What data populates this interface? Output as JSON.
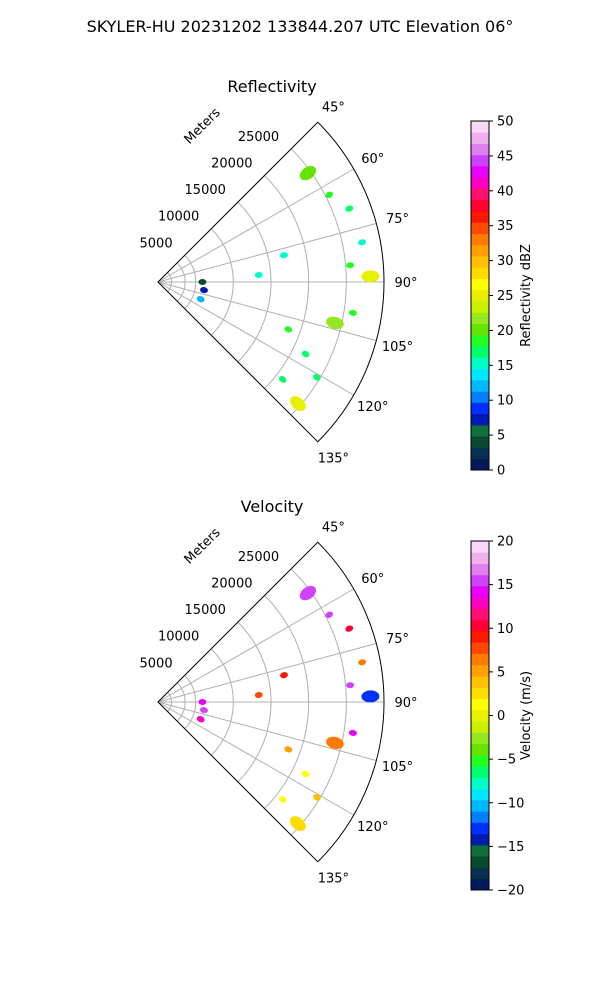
{
  "figure_title": "SKYLER-HU  20231202  133844.207 UTC Elevation 06°",
  "chart_data": [
    {
      "type": "polar-sector",
      "title": "Reflectivity",
      "range_label": "Meters",
      "range_ticks": [
        5000,
        10000,
        15000,
        20000,
        25000
      ],
      "range_max_m": 30000,
      "azimuth_range_deg": [
        45,
        135
      ],
      "azimuth_ticks": [
        "45°",
        "60°",
        "75°",
        "90°",
        "105°",
        "120°",
        "135°"
      ],
      "colorbar": {
        "label": "Reflectivity dBZ",
        "min": 0,
        "max": 50,
        "ticks": [
          "0",
          "5",
          "10",
          "15",
          "20",
          "25",
          "30",
          "35",
          "40",
          "45",
          "50"
        ],
        "colors": [
          "#021a5a",
          "#083050",
          "#0a4a30",
          "#0f6e3a",
          "#001bb0",
          "#0030ff",
          "#0080ff",
          "#00b8ff",
          "#00e8ff",
          "#00ffc8",
          "#00ff6a",
          "#20ff20",
          "#66e400",
          "#96e81e",
          "#c8f000",
          "#e8f000",
          "#ffff00",
          "#ffdc00",
          "#ffc000",
          "#ffa000",
          "#ff7a00",
          "#ff4a00",
          "#ff1800",
          "#ff0030",
          "#ff1070",
          "#ff00c0",
          "#e800ff",
          "#d040ff",
          "#e080f0",
          "#f0b0f0",
          "#f8d8f8"
        ]
      },
      "echo_cells": [
        {
          "r_km": 24.6,
          "az": 54,
          "dbz": 20
        },
        {
          "r_km": 25.5,
          "az": 63,
          "dbz": 19
        },
        {
          "r_km": 27.2,
          "az": 69,
          "dbz": 17
        },
        {
          "r_km": 27.6,
          "az": 79,
          "dbz": 15
        },
        {
          "r_km": 25.6,
          "az": 85,
          "dbz": 18
        },
        {
          "r_km": 28.2,
          "az": 88.5,
          "dbz": 25
        },
        {
          "r_km": 26.2,
          "az": 99,
          "dbz": 19
        },
        {
          "r_km": 24.1,
          "az": 103,
          "dbz": 22
        },
        {
          "r_km": 18.4,
          "az": 110,
          "dbz": 18
        },
        {
          "r_km": 21.8,
          "az": 116,
          "dbz": 17
        },
        {
          "r_km": 24.6,
          "az": 121,
          "dbz": 17
        },
        {
          "r_km": 24.6,
          "az": 131,
          "dbz": 25
        },
        {
          "r_km": 21.0,
          "az": 128,
          "dbz": 17
        },
        {
          "r_km": 5.9,
          "az": 90,
          "dbz": 4
        },
        {
          "r_km": 6.2,
          "az": 100,
          "dbz": 8
        },
        {
          "r_km": 6.1,
          "az": 112,
          "dbz": 12
        },
        {
          "r_km": 13.4,
          "az": 86,
          "dbz": 16
        },
        {
          "r_km": 17.1,
          "az": 78,
          "dbz": 15
        }
      ]
    },
    {
      "type": "polar-sector",
      "title": "Velocity",
      "range_label": "Meters",
      "range_ticks": [
        5000,
        10000,
        15000,
        20000,
        25000
      ],
      "range_max_m": 30000,
      "azimuth_range_deg": [
        45,
        135
      ],
      "azimuth_ticks": [
        "45°",
        "60°",
        "75°",
        "90°",
        "105°",
        "120°",
        "135°"
      ],
      "colorbar": {
        "label": "Velocity (m/s)",
        "min": -20,
        "max": 20,
        "ticks": [
          "−20",
          "−15",
          "−10",
          "−5",
          "0",
          "5",
          "10",
          "15",
          "20"
        ],
        "colors": [
          "#021a5a",
          "#083050",
          "#0a4a30",
          "#0f6e3a",
          "#001bb0",
          "#0030ff",
          "#0080ff",
          "#00b8ff",
          "#00e8ff",
          "#00ffc8",
          "#00ff6a",
          "#20ff20",
          "#66e400",
          "#96e81e",
          "#c8f000",
          "#e8f000",
          "#ffff00",
          "#ffdc00",
          "#ffc000",
          "#ffa000",
          "#ff7a00",
          "#ff4a00",
          "#ff1800",
          "#ff0030",
          "#ff1070",
          "#ff00c0",
          "#e800ff",
          "#d040ff",
          "#e080f0",
          "#f0b0f0",
          "#f8d8f8"
        ]
      },
      "echo_cells": [
        {
          "r_km": 24.6,
          "az": 54,
          "vel": 16
        },
        {
          "r_km": 25.5,
          "az": 63,
          "vel": 15
        },
        {
          "r_km": 27.2,
          "az": 69,
          "vel": 10
        },
        {
          "r_km": 27.6,
          "az": 79,
          "vel": 6
        },
        {
          "r_km": 25.6,
          "az": 85,
          "vel": 15
        },
        {
          "r_km": 28.2,
          "az": 88.5,
          "vel": -13
        },
        {
          "r_km": 26.2,
          "az": 99,
          "vel": 14
        },
        {
          "r_km": 24.1,
          "az": 103,
          "vel": 7
        },
        {
          "r_km": 18.4,
          "az": 110,
          "vel": 5
        },
        {
          "r_km": 21.8,
          "az": 116,
          "vel": 1
        },
        {
          "r_km": 24.6,
          "az": 121,
          "vel": 4
        },
        {
          "r_km": 24.6,
          "az": 131,
          "vel": 3
        },
        {
          "r_km": 21.0,
          "az": 128,
          "vel": 1
        },
        {
          "r_km": 5.9,
          "az": 90,
          "vel": 14
        },
        {
          "r_km": 6.2,
          "az": 100,
          "vel": 15
        },
        {
          "r_km": 6.1,
          "az": 112,
          "vel": 13
        },
        {
          "r_km": 13.4,
          "az": 86,
          "vel": 8
        },
        {
          "r_km": 17.1,
          "az": 78,
          "vel": 9
        }
      ]
    }
  ]
}
